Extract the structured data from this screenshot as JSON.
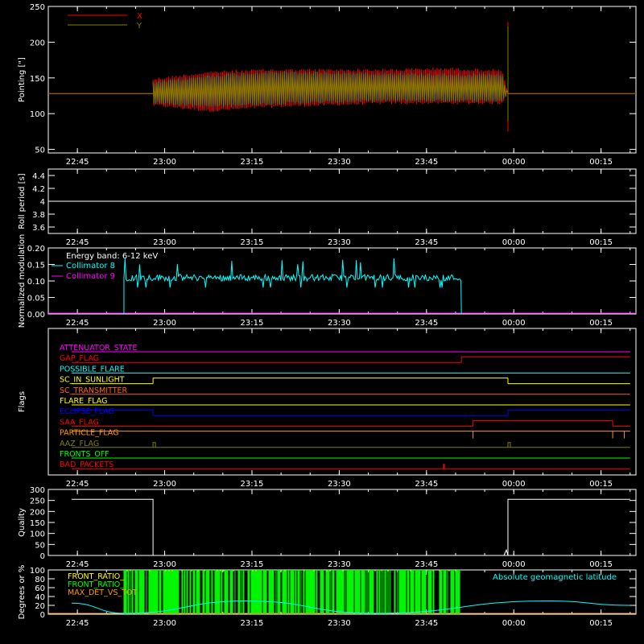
{
  "chart_data": [
    {
      "type": "line",
      "ylabel": "Pointing [\"]",
      "ylim": [
        45,
        250
      ],
      "yticks": [
        50,
        100,
        150,
        200,
        250
      ],
      "xticks": [
        "22:45",
        "23:00",
        "23:15",
        "23:30",
        "23:45",
        "00:00",
        "00:15"
      ],
      "legend": "top-left",
      "series": [
        {
          "name": "X",
          "color": "#ff0000",
          "base": 128,
          "t_start": "22:58",
          "t_end": "23:59",
          "envelope": [
            [
              0,
              110,
              150
            ],
            [
              10,
              102,
              160
            ],
            [
              20,
              108,
              163
            ],
            [
              40,
              113,
              163
            ],
            [
              50,
              113,
              165
            ],
            [
              60,
              113,
              162
            ],
            [
              61,
              128,
              128
            ]
          ]
        },
        {
          "name": "Y",
          "color": "#808000",
          "base": 128,
          "t_start": "22:58",
          "t_end": "23:59",
          "envelope": [
            [
              0,
              113,
              145
            ],
            [
              10,
              108,
              155
            ],
            [
              20,
              112,
              160
            ],
            [
              40,
              116,
              158
            ],
            [
              60,
              116,
              156
            ],
            [
              61,
              128,
              128
            ]
          ]
        }
      ]
    },
    {
      "type": "line",
      "ylabel": "Roll period [s]",
      "ylim": [
        3.5,
        4.5
      ],
      "yticks": [
        3.6,
        3.8,
        4.0,
        4.2,
        4.4
      ],
      "xticks": [
        "22:45",
        "23:00",
        "23:15",
        "23:30",
        "23:45",
        "00:00",
        "00:15"
      ],
      "series": [
        {
          "name": "",
          "color": "#ffffff",
          "values": [
            4.0
          ]
        }
      ]
    },
    {
      "type": "line",
      "ylabel": "Normalized modulation",
      "ylim": [
        0,
        0.2
      ],
      "yticks": [
        "0.00",
        "0.05",
        "0.10",
        "0.15",
        "0.20"
      ],
      "xticks": [
        "22:45",
        "23:00",
        "23:15",
        "23:30",
        "23:45",
        "00:00",
        "00:15"
      ],
      "annotation": "Energy band: 6-12 keV",
      "series": [
        {
          "name": "Collimator 8",
          "color": "#00ffff",
          "t_start": "22:53",
          "t_end": "23:51",
          "mean": 0.11,
          "spread": 0.02
        },
        {
          "name": "Collimator 9",
          "color": "#ff00ff",
          "values": [
            0.0
          ]
        }
      ]
    },
    {
      "type": "line",
      "ylabel": "Flags",
      "xticks": [
        "22:45",
        "23:00",
        "23:15",
        "23:30",
        "23:45",
        "00:00",
        "00:15"
      ],
      "flags": [
        {
          "name": "ATTENUATOR_STATE",
          "color": "#ff00ff",
          "segments": [
            [
              "22:44",
              "00:20",
              0
            ]
          ]
        },
        {
          "name": "GAP_FLAG",
          "color": "#ff0000",
          "segments": [
            [
              "22:44",
              "23:51",
              0
            ],
            [
              "23:51",
              "00:20",
              1
            ]
          ]
        },
        {
          "name": "POSSIBLE_FLARE",
          "color": "#00ffff",
          "segments": [
            [
              "22:44",
              "00:20",
              0
            ]
          ]
        },
        {
          "name": "SC_IN_SUNLIGHT",
          "color": "#ffff00",
          "segments": [
            [
              "22:44",
              "22:58",
              0
            ],
            [
              "22:58",
              "23:59",
              1
            ],
            [
              "23:59",
              "00:20",
              0
            ]
          ]
        },
        {
          "name": "SC_TRANSMITTER",
          "color": "#ff6600",
          "segments": [
            [
              "22:44",
              "00:20",
              0
            ]
          ]
        },
        {
          "name": "FLARE_FLAG",
          "color": "#ffff00",
          "segments": [
            [
              "22:44",
              "00:20",
              0
            ]
          ]
        },
        {
          "name": "ECLIPSE_FLAG",
          "color": "#0000ff",
          "segments": [
            [
              "22:44",
              "22:58",
              1
            ],
            [
              "22:58",
              "23:59",
              0
            ],
            [
              "23:59",
              "00:20",
              1
            ]
          ]
        },
        {
          "name": "SAA_FLAG",
          "color": "#ff0000",
          "segments": [
            [
              "22:44",
              "23:53",
              0
            ],
            [
              "23:53",
              "00:17",
              1
            ],
            [
              "00:17",
              "00:20",
              0
            ]
          ]
        },
        {
          "name": "PARTICLE_FLAG",
          "color": "#ff9900",
          "segments": [
            [
              "22:44",
              "00:20",
              1
            ]
          ]
        },
        {
          "name": "AAZ_FLAG",
          "color": "#808000",
          "segments": [
            [
              "22:44",
              "00:20",
              0
            ]
          ]
        },
        {
          "name": "FRONTS_OFF",
          "color": "#00ff00",
          "segments": [
            [
              "22:44",
              "00:20",
              0
            ]
          ]
        },
        {
          "name": "BAD_PACKETS",
          "color": "#ff0000",
          "segments": [
            [
              "22:44",
              "00:20",
              0
            ]
          ]
        }
      ]
    },
    {
      "type": "line",
      "ylabel": "Quality",
      "ylim": [
        0,
        300
      ],
      "yticks": [
        0,
        50,
        100,
        150,
        200,
        250,
        300
      ],
      "xticks": [
        "22:45",
        "23:00",
        "23:15",
        "23:30",
        "23:45",
        "00:00",
        "00:15"
      ],
      "series": [
        {
          "name": "",
          "color": "#ffffff",
          "points": [
            [
              "22:44",
              255
            ],
            [
              "22:58",
              255
            ],
            [
              "22:58",
              0
            ],
            [
              "23:59",
              0
            ],
            [
              "23:59",
              255
            ],
            [
              "00:20",
              255
            ]
          ]
        }
      ]
    },
    {
      "type": "line",
      "ylabel": "Degrees or %",
      "ylim": [
        0,
        100
      ],
      "yticks": [
        0,
        20,
        40,
        60,
        80,
        100
      ],
      "xticks": [
        "22:45",
        "23:00",
        "23:15",
        "23:30",
        "23:45",
        "00:00",
        "00:15"
      ],
      "legend": "top-left",
      "series": [
        {
          "name": "FRONT_RATIO_",
          "color": "#ffff00"
        },
        {
          "name": "FRONT_RATIO_",
          "color": "#00ff00",
          "t_start": "22:53",
          "t_end": "23:51"
        },
        {
          "name": "MAX_DET_VS_TOT",
          "color": "#ff9900"
        },
        {
          "name": "Absolute geomagnetic latitude",
          "color": "#00ffff",
          "points": [
            [
              "22:44",
              25
            ],
            [
              "22:53",
              2
            ],
            [
              "23:14",
              30
            ],
            [
              "23:36",
              2
            ],
            [
              "00:06",
              30
            ],
            [
              "00:20",
              20
            ]
          ]
        }
      ]
    }
  ]
}
